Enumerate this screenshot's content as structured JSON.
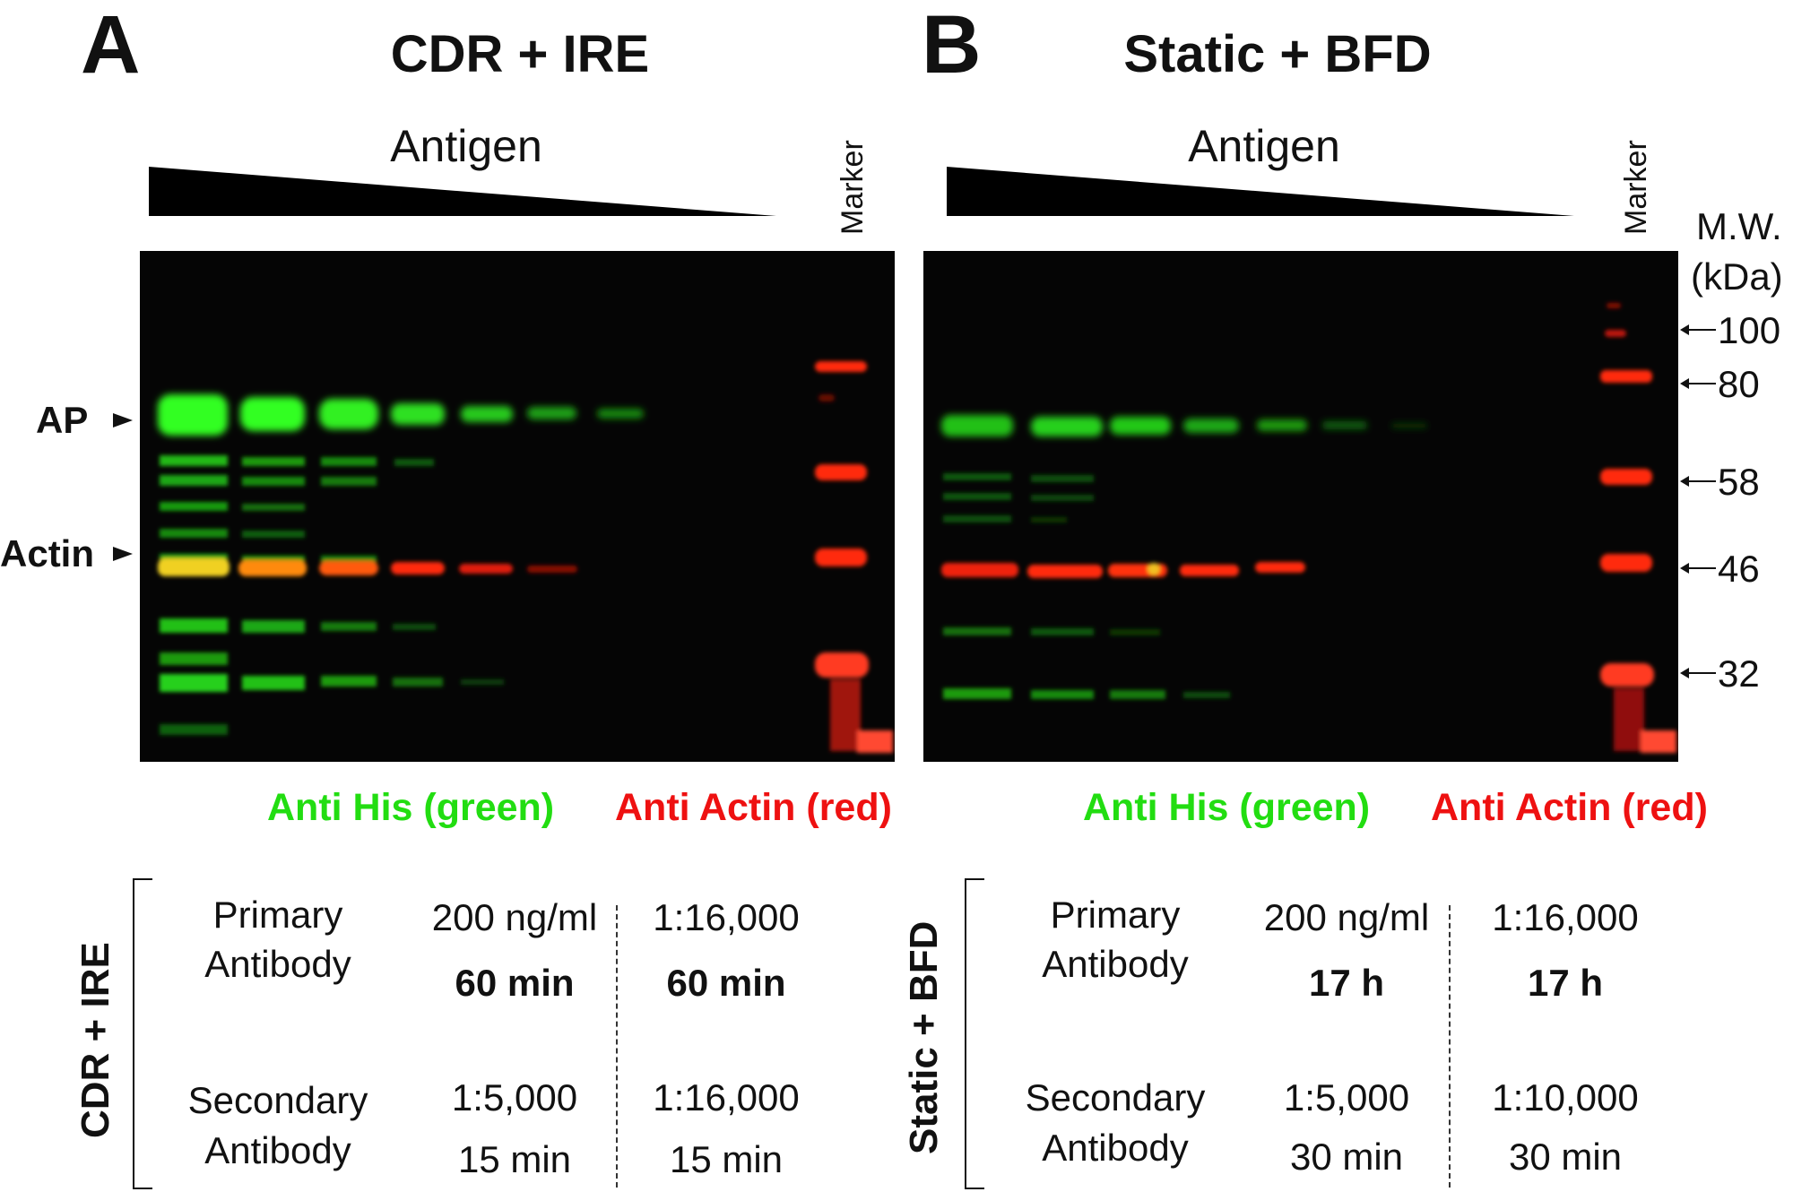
{
  "panel_a": {
    "letter": "A",
    "title": "CDR + IRE",
    "antigen_label": "Antigen",
    "marker_label": "Marker",
    "band_labels": {
      "ap": "AP",
      "actin": "Actin"
    },
    "legend": {
      "green": "Anti His (green)",
      "red": "Anti Actin (red)"
    },
    "table": {
      "side_label": "CDR + IRE",
      "primary_label_1": "Primary",
      "primary_label_2": "Antibody",
      "secondary_label_1": "Secondary",
      "secondary_label_2": "Antibody",
      "primary_his_conc": "200 ng/ml",
      "primary_his_time": "60 min",
      "primary_actin_conc": "1:16,000",
      "primary_actin_time": "60 min",
      "secondary_his_conc": "1:5,000",
      "secondary_his_time": "15 min",
      "secondary_actin_conc": "1:16,000",
      "secondary_actin_time": "15 min"
    }
  },
  "panel_b": {
    "letter": "B",
    "title": "Static + BFD",
    "antigen_label": "Antigen",
    "marker_label": "Marker",
    "legend": {
      "green": "Anti His (green)",
      "red": "Anti Actin (red)"
    },
    "table": {
      "side_label": "Static + BFD",
      "primary_label_1": "Primary",
      "primary_label_2": "Antibody",
      "secondary_label_1": "Secondary",
      "secondary_label_2": "Antibody",
      "primary_his_conc": "200 ng/ml",
      "primary_his_time": "17 h",
      "primary_actin_conc": "1:16,000",
      "primary_actin_time": "17 h",
      "secondary_his_conc": "1:5,000",
      "secondary_his_time": "30 min",
      "secondary_actin_conc": "1:10,000",
      "secondary_actin_time": "30 min"
    }
  },
  "mw_axis": {
    "title_1": "M.W.",
    "title_2": "(kDa)",
    "markers": [
      "100",
      "80",
      "58",
      "46",
      "32"
    ]
  },
  "colors": {
    "green_text": "#22dd11",
    "red_text": "#ee1111",
    "blot_bg": "#050505",
    "green_band": "#33ff22",
    "red_band": "#ff2a10",
    "yellow_band": "#f0d020"
  }
}
